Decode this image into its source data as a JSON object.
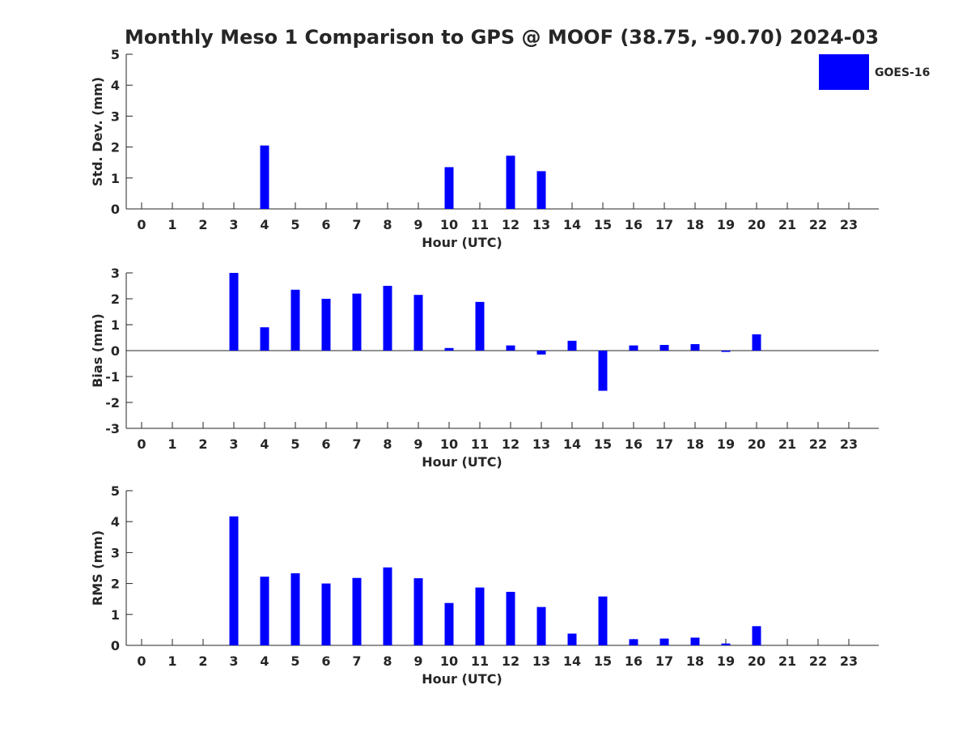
{
  "title": "Monthly Meso 1 Comparison to GPS @ MOOF (38.75, -90.70) 2024-03",
  "legend": {
    "label": "GOES-16",
    "color": "#0000ff",
    "position": "top-right"
  },
  "chart_data": [
    {
      "type": "bar",
      "ylabel": "Std. Dev. (mm)",
      "xlabel": "Hour (UTC)",
      "ylim": [
        0,
        5
      ],
      "yticks": [
        0,
        1,
        2,
        3,
        4,
        5
      ],
      "categories": [
        "0",
        "1",
        "2",
        "3",
        "4",
        "5",
        "6",
        "7",
        "8",
        "9",
        "10",
        "11",
        "12",
        "13",
        "14",
        "15",
        "16",
        "17",
        "18",
        "19",
        "20",
        "21",
        "22",
        "23"
      ],
      "series": [
        {
          "name": "GOES-16",
          "values": [
            null,
            null,
            null,
            null,
            2.05,
            null,
            null,
            null,
            null,
            null,
            1.35,
            null,
            1.72,
            1.22,
            null,
            null,
            null,
            null,
            null,
            null,
            null,
            null,
            null,
            null
          ]
        }
      ]
    },
    {
      "type": "bar",
      "ylabel": "Bias (mm)",
      "xlabel": "Hour (UTC)",
      "ylim": [
        -3,
        3
      ],
      "yticks": [
        -3,
        -2,
        -1,
        0,
        1,
        2,
        3
      ],
      "categories": [
        "0",
        "1",
        "2",
        "3",
        "4",
        "5",
        "6",
        "7",
        "8",
        "9",
        "10",
        "11",
        "12",
        "13",
        "14",
        "15",
        "16",
        "17",
        "18",
        "19",
        "20",
        "21",
        "22",
        "23"
      ],
      "series": [
        {
          "name": "GOES-16",
          "values": [
            null,
            null,
            null,
            3.0,
            0.9,
            2.35,
            2.0,
            2.2,
            2.5,
            2.15,
            0.1,
            1.88,
            0.2,
            -0.15,
            0.38,
            -1.55,
            0.2,
            0.22,
            0.25,
            -0.05,
            0.63,
            null,
            null,
            null
          ]
        }
      ]
    },
    {
      "type": "bar",
      "ylabel": "RMS (mm)",
      "xlabel": "Hour (UTC)",
      "ylim": [
        0,
        5
      ],
      "yticks": [
        0,
        1,
        2,
        3,
        4,
        5
      ],
      "categories": [
        "0",
        "1",
        "2",
        "3",
        "4",
        "5",
        "6",
        "7",
        "8",
        "9",
        "10",
        "11",
        "12",
        "13",
        "14",
        "15",
        "16",
        "17",
        "18",
        "19",
        "20",
        "21",
        "22",
        "23"
      ],
      "series": [
        {
          "name": "GOES-16",
          "values": [
            null,
            null,
            null,
            4.17,
            2.22,
            2.33,
            2.0,
            2.18,
            2.52,
            2.17,
            1.37,
            1.87,
            1.73,
            1.24,
            0.38,
            1.58,
            0.2,
            0.22,
            0.25,
            0.06,
            0.62,
            null,
            null,
            null
          ]
        }
      ]
    }
  ]
}
